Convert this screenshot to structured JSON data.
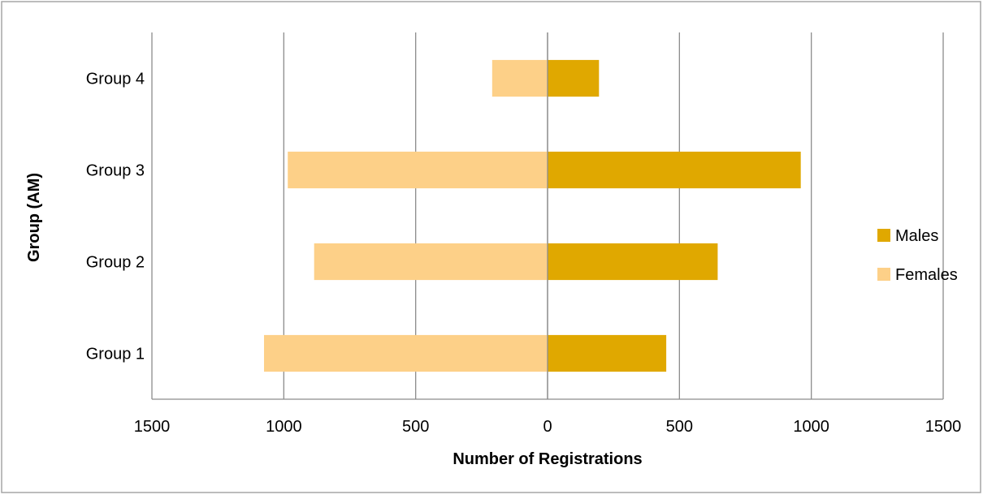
{
  "chart_data": {
    "type": "bar",
    "orientation": "horizontal",
    "layout": "diverging (population pyramid)",
    "categories": [
      "Group 1",
      "Group 2",
      "Group 3",
      "Group 4"
    ],
    "series": [
      {
        "name": "Males",
        "values": [
          450,
          645,
          960,
          195
        ],
        "side": "right",
        "color": "#e0a800"
      },
      {
        "name": "Females",
        "values": [
          1075,
          885,
          985,
          210
        ],
        "side": "left",
        "color": "#fdd088"
      }
    ],
    "xlabel": "Number of Registrations",
    "ylabel": "Group (AM)",
    "xlim": [
      -1500,
      1500
    ],
    "x_ticks": [
      -1500,
      -1000,
      -500,
      0,
      500,
      1000,
      1500
    ],
    "x_tick_labels": [
      "1500",
      "1000",
      "500",
      "0",
      "500",
      "1000",
      "1500"
    ],
    "grid": "vertical gridlines on",
    "legend": {
      "position": "right",
      "entries": [
        "Males",
        "Females"
      ]
    }
  }
}
